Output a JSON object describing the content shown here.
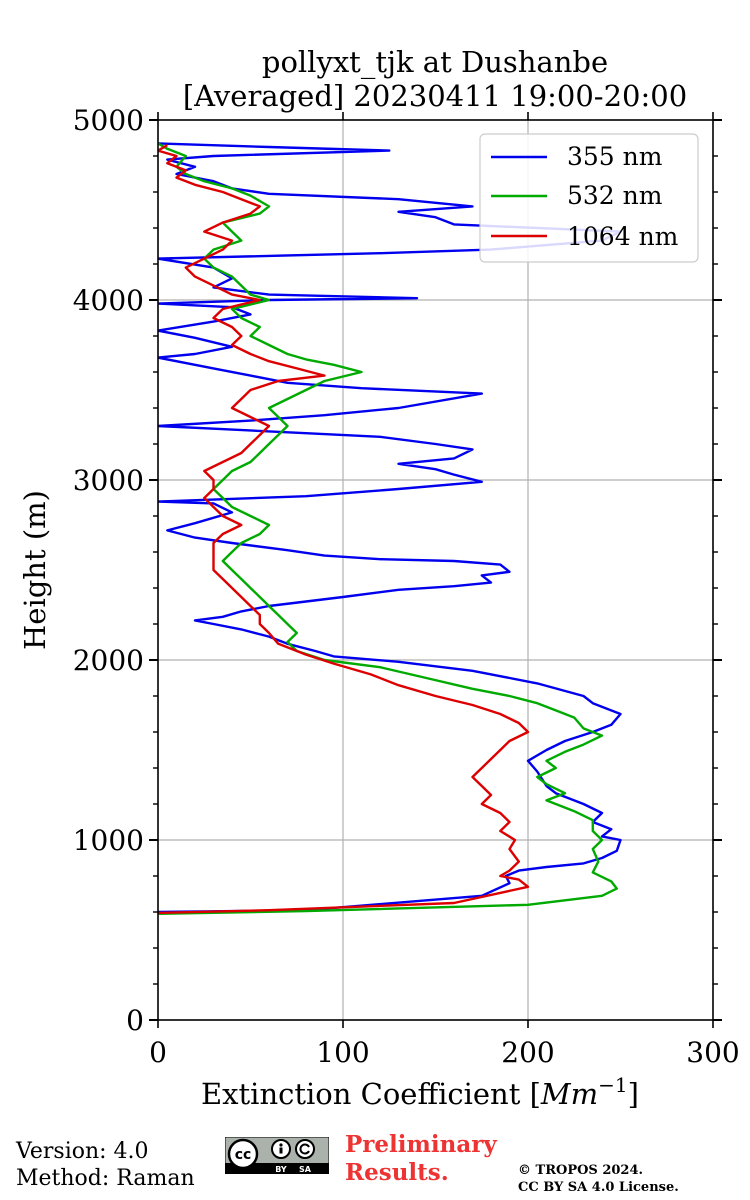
{
  "chart_data": {
    "type": "line",
    "title_line1": "pollyxt_tjk at Dushanbe",
    "title_line2": "[Averaged] 20230411 19:00-20:00",
    "xlabel": "Extinction Coefficient [",
    "xlabel_unit": "Mm",
    "xlabel_exp": "−1",
    "xlabel_close": "]",
    "ylabel": "Height (m)",
    "xlim": [
      0,
      300
    ],
    "ylim": [
      0,
      5000
    ],
    "xticks": [
      0,
      100,
      200,
      300
    ],
    "yticks": [
      0,
      1000,
      2000,
      3000,
      4000,
      5000
    ],
    "xtick_labels": [
      "0",
      "100",
      "200",
      "300"
    ],
    "ytick_labels": [
      "0",
      "1000",
      "2000",
      "3000",
      "4000",
      "5000"
    ],
    "grid": true,
    "legend_position": "top-right",
    "series": [
      {
        "name": "355 nm",
        "color": "#0000ee",
        "points": [
          [
            0,
            600
          ],
          [
            80,
            610
          ],
          [
            175,
            690
          ],
          [
            190,
            760
          ],
          [
            188,
            800
          ],
          [
            195,
            830
          ],
          [
            210,
            850
          ],
          [
            230,
            870
          ],
          [
            240,
            900
          ],
          [
            248,
            940
          ],
          [
            250,
            1000
          ],
          [
            240,
            1020
          ],
          [
            245,
            1060
          ],
          [
            235,
            1100
          ],
          [
            240,
            1150
          ],
          [
            230,
            1200
          ],
          [
            215,
            1260
          ],
          [
            210,
            1300
          ],
          [
            205,
            1380
          ],
          [
            200,
            1440
          ],
          [
            210,
            1500
          ],
          [
            220,
            1550
          ],
          [
            235,
            1600
          ],
          [
            245,
            1640
          ],
          [
            250,
            1700
          ],
          [
            235,
            1760
          ],
          [
            230,
            1800
          ],
          [
            205,
            1870
          ],
          [
            170,
            1940
          ],
          [
            130,
            1990
          ],
          [
            95,
            2020
          ],
          [
            85,
            2050
          ],
          [
            70,
            2090
          ],
          [
            60,
            2130
          ],
          [
            45,
            2170
          ],
          [
            30,
            2200
          ],
          [
            20,
            2220
          ],
          [
            35,
            2240
          ],
          [
            45,
            2270
          ],
          [
            60,
            2300
          ],
          [
            100,
            2350
          ],
          [
            130,
            2390
          ],
          [
            160,
            2410
          ],
          [
            180,
            2430
          ],
          [
            175,
            2470
          ],
          [
            190,
            2490
          ],
          [
            185,
            2530
          ],
          [
            160,
            2550
          ],
          [
            120,
            2560
          ],
          [
            90,
            2580
          ],
          [
            70,
            2610
          ],
          [
            40,
            2650
          ],
          [
            20,
            2680
          ],
          [
            5,
            2720
          ],
          [
            20,
            2760
          ],
          [
            40,
            2820
          ],
          [
            30,
            2870
          ],
          [
            0,
            2880
          ],
          [
            80,
            2910
          ],
          [
            130,
            2950
          ],
          [
            175,
            2990
          ],
          [
            160,
            3030
          ],
          [
            150,
            3060
          ],
          [
            130,
            3090
          ],
          [
            160,
            3120
          ],
          [
            170,
            3170
          ],
          [
            150,
            3200
          ],
          [
            120,
            3240
          ],
          [
            80,
            3260
          ],
          [
            40,
            3280
          ],
          [
            0,
            3300
          ],
          [
            50,
            3330
          ],
          [
            90,
            3360
          ],
          [
            130,
            3400
          ],
          [
            175,
            3480
          ],
          [
            110,
            3510
          ],
          [
            70,
            3540
          ],
          [
            50,
            3580
          ],
          [
            30,
            3620
          ],
          [
            0,
            3680
          ],
          [
            20,
            3700
          ],
          [
            40,
            3740
          ],
          [
            20,
            3790
          ],
          [
            0,
            3830
          ],
          [
            30,
            3880
          ],
          [
            50,
            3920
          ],
          [
            40,
            3960
          ],
          [
            0,
            3980
          ],
          [
            60,
            4000
          ],
          [
            140,
            4010
          ],
          [
            60,
            4030
          ],
          [
            30,
            4070
          ],
          [
            40,
            4120
          ],
          [
            30,
            4180
          ],
          [
            0,
            4230
          ],
          [
            120,
            4260
          ],
          [
            180,
            4280
          ],
          [
            240,
            4330
          ],
          [
            250,
            4380
          ],
          [
            160,
            4420
          ],
          [
            150,
            4460
          ],
          [
            130,
            4490
          ],
          [
            170,
            4520
          ],
          [
            130,
            4560
          ],
          [
            60,
            4590
          ],
          [
            40,
            4620
          ],
          [
            30,
            4660
          ],
          [
            10,
            4700
          ],
          [
            20,
            4740
          ],
          [
            5,
            4780
          ],
          [
            30,
            4800
          ],
          [
            125,
            4830
          ],
          [
            60,
            4850
          ],
          [
            0,
            4870
          ]
        ]
      },
      {
        "name": "532 nm",
        "color": "#00aa00",
        "points": [
          [
            0,
            590
          ],
          [
            80,
            605
          ],
          [
            200,
            640
          ],
          [
            240,
            690
          ],
          [
            248,
            730
          ],
          [
            245,
            770
          ],
          [
            235,
            820
          ],
          [
            238,
            880
          ],
          [
            235,
            950
          ],
          [
            240,
            1000
          ],
          [
            235,
            1050
          ],
          [
            235,
            1110
          ],
          [
            225,
            1160
          ],
          [
            210,
            1220
          ],
          [
            220,
            1260
          ],
          [
            210,
            1310
          ],
          [
            205,
            1350
          ],
          [
            215,
            1400
          ],
          [
            210,
            1440
          ],
          [
            220,
            1490
          ],
          [
            230,
            1530
          ],
          [
            240,
            1580
          ],
          [
            230,
            1620
          ],
          [
            225,
            1680
          ],
          [
            215,
            1720
          ],
          [
            205,
            1760
          ],
          [
            190,
            1800
          ],
          [
            170,
            1840
          ],
          [
            145,
            1900
          ],
          [
            120,
            1960
          ],
          [
            90,
            2000
          ],
          [
            75,
            2050
          ],
          [
            70,
            2100
          ],
          [
            75,
            2150
          ],
          [
            70,
            2200
          ],
          [
            65,
            2250
          ],
          [
            60,
            2300
          ],
          [
            55,
            2350
          ],
          [
            50,
            2400
          ],
          [
            45,
            2450
          ],
          [
            40,
            2500
          ],
          [
            35,
            2550
          ],
          [
            40,
            2600
          ],
          [
            45,
            2650
          ],
          [
            55,
            2700
          ],
          [
            60,
            2750
          ],
          [
            50,
            2800
          ],
          [
            40,
            2850
          ],
          [
            35,
            2900
          ],
          [
            30,
            2950
          ],
          [
            35,
            3000
          ],
          [
            40,
            3050
          ],
          [
            50,
            3100
          ],
          [
            55,
            3150
          ],
          [
            60,
            3200
          ],
          [
            65,
            3250
          ],
          [
            70,
            3300
          ],
          [
            65,
            3350
          ],
          [
            60,
            3400
          ],
          [
            70,
            3450
          ],
          [
            80,
            3500
          ],
          [
            90,
            3550
          ],
          [
            110,
            3600
          ],
          [
            95,
            3640
          ],
          [
            80,
            3670
          ],
          [
            70,
            3700
          ],
          [
            60,
            3750
          ],
          [
            50,
            3800
          ],
          [
            55,
            3850
          ],
          [
            45,
            3900
          ],
          [
            40,
            3950
          ],
          [
            60,
            4000
          ],
          [
            50,
            4030
          ],
          [
            45,
            4080
          ],
          [
            40,
            4130
          ],
          [
            30,
            4180
          ],
          [
            25,
            4230
          ],
          [
            30,
            4280
          ],
          [
            45,
            4330
          ],
          [
            40,
            4380
          ],
          [
            35,
            4430
          ],
          [
            55,
            4480
          ],
          [
            60,
            4520
          ],
          [
            50,
            4580
          ],
          [
            40,
            4620
          ],
          [
            25,
            4660
          ],
          [
            15,
            4700
          ],
          [
            10,
            4740
          ],
          [
            15,
            4800
          ],
          [
            5,
            4840
          ],
          [
            0,
            4870
          ]
        ]
      },
      {
        "name": "1064 nm",
        "color": "#dd0000",
        "points": [
          [
            0,
            595
          ],
          [
            60,
            610
          ],
          [
            160,
            650
          ],
          [
            200,
            740
          ],
          [
            195,
            780
          ],
          [
            185,
            800
          ],
          [
            190,
            830
          ],
          [
            195,
            880
          ],
          [
            190,
            950
          ],
          [
            193,
            1000
          ],
          [
            185,
            1050
          ],
          [
            190,
            1100
          ],
          [
            185,
            1150
          ],
          [
            175,
            1200
          ],
          [
            180,
            1250
          ],
          [
            175,
            1300
          ],
          [
            170,
            1350
          ],
          [
            175,
            1400
          ],
          [
            180,
            1450
          ],
          [
            185,
            1500
          ],
          [
            190,
            1550
          ],
          [
            200,
            1600
          ],
          [
            195,
            1650
          ],
          [
            185,
            1700
          ],
          [
            170,
            1750
          ],
          [
            150,
            1800
          ],
          [
            130,
            1860
          ],
          [
            115,
            1920
          ],
          [
            95,
            1980
          ],
          [
            80,
            2030
          ],
          [
            65,
            2090
          ],
          [
            60,
            2150
          ],
          [
            55,
            2200
          ],
          [
            55,
            2250
          ],
          [
            50,
            2300
          ],
          [
            45,
            2350
          ],
          [
            40,
            2400
          ],
          [
            35,
            2450
          ],
          [
            30,
            2500
          ],
          [
            30,
            2550
          ],
          [
            30,
            2600
          ],
          [
            30,
            2650
          ],
          [
            35,
            2700
          ],
          [
            45,
            2750
          ],
          [
            35,
            2800
          ],
          [
            30,
            2850
          ],
          [
            25,
            2900
          ],
          [
            30,
            2950
          ],
          [
            30,
            3000
          ],
          [
            25,
            3050
          ],
          [
            35,
            3100
          ],
          [
            45,
            3150
          ],
          [
            50,
            3200
          ],
          [
            55,
            3250
          ],
          [
            60,
            3300
          ],
          [
            50,
            3350
          ],
          [
            40,
            3400
          ],
          [
            45,
            3450
          ],
          [
            50,
            3500
          ],
          [
            65,
            3550
          ],
          [
            90,
            3580
          ],
          [
            75,
            3620
          ],
          [
            60,
            3660
          ],
          [
            50,
            3700
          ],
          [
            40,
            3750
          ],
          [
            45,
            3800
          ],
          [
            40,
            3850
          ],
          [
            30,
            3900
          ],
          [
            35,
            3950
          ],
          [
            55,
            4000
          ],
          [
            40,
            4030
          ],
          [
            30,
            4080
          ],
          [
            20,
            4130
          ],
          [
            15,
            4180
          ],
          [
            25,
            4230
          ],
          [
            35,
            4280
          ],
          [
            40,
            4330
          ],
          [
            25,
            4380
          ],
          [
            35,
            4430
          ],
          [
            50,
            4480
          ],
          [
            55,
            4520
          ],
          [
            45,
            4560
          ],
          [
            35,
            4600
          ],
          [
            20,
            4640
          ],
          [
            10,
            4680
          ],
          [
            15,
            4720
          ],
          [
            5,
            4760
          ],
          [
            10,
            4800
          ],
          [
            0,
            4830
          ],
          [
            5,
            4860
          ]
        ]
      }
    ]
  },
  "footer": {
    "version": "Version: 4.0",
    "method": "Method: Raman",
    "preliminary": "Preliminary Results.",
    "copyright_line1": "© TROPOS 2024.",
    "copyright_line2": "CC BY SA 4.0 License.",
    "cc_badge": "cc",
    "cc_by": "BY",
    "cc_sa": "SA"
  }
}
